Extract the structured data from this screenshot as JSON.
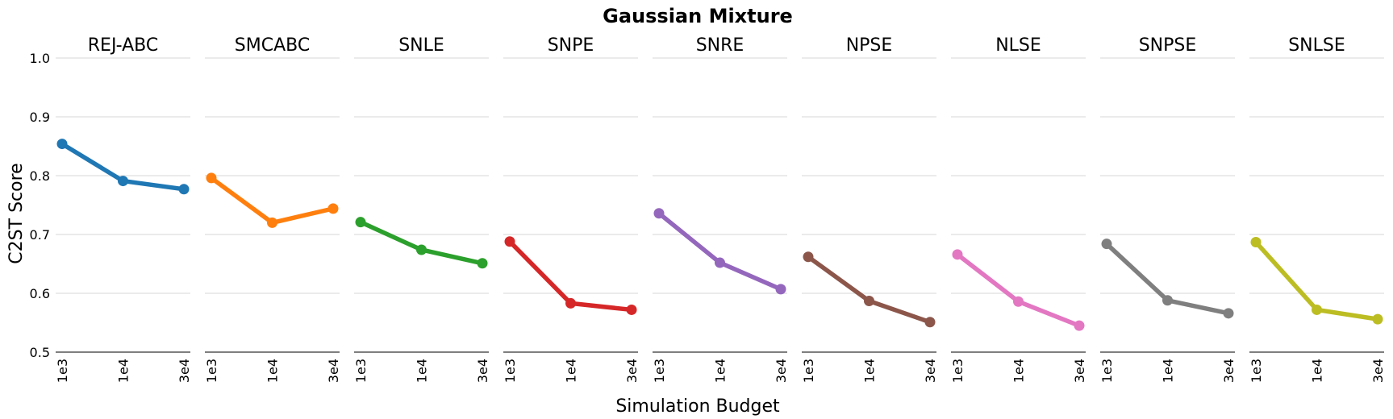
{
  "chart_data": {
    "type": "line",
    "title": "Gaussian Mixture",
    "xlabel": "Simulation Budget",
    "ylabel": "C2ST Score",
    "ylim": [
      0.5,
      1.0
    ],
    "yticks": [
      "0.5",
      "0.6",
      "0.7",
      "0.8",
      "0.9",
      "1.0"
    ],
    "categories": [
      "1e3",
      "1e4",
      "3e4"
    ],
    "grid": true,
    "series": [
      {
        "name": "REJ-ABC",
        "color": "#1f77b4",
        "values": [
          0.854,
          0.791,
          0.777
        ]
      },
      {
        "name": "SMCABC",
        "color": "#ff7f0e",
        "values": [
          0.796,
          0.72,
          0.744
        ]
      },
      {
        "name": "SNLE",
        "color": "#2ca02c",
        "values": [
          0.721,
          0.674,
          0.651
        ]
      },
      {
        "name": "SNPE",
        "color": "#d62728",
        "values": [
          0.688,
          0.583,
          0.572
        ]
      },
      {
        "name": "SNRE",
        "color": "#9467bd",
        "values": [
          0.736,
          0.652,
          0.607
        ]
      },
      {
        "name": "NPSE",
        "color": "#8c564b",
        "values": [
          0.662,
          0.587,
          0.551
        ]
      },
      {
        "name": "NLSE",
        "color": "#e377c2",
        "values": [
          0.666,
          0.586,
          0.545
        ]
      },
      {
        "name": "SNPSE",
        "color": "#7f7f7f",
        "values": [
          0.684,
          0.588,
          0.566
        ]
      },
      {
        "name": "SNLSE",
        "color": "#bcbd22",
        "values": [
          0.687,
          0.572,
          0.556
        ]
      }
    ]
  }
}
